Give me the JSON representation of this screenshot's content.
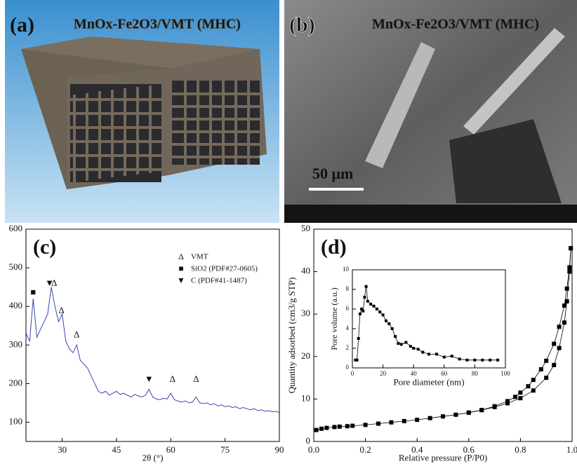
{
  "panels": [
    {
      "label": "(a)",
      "caption": "MnOx-Fe2O3/VMT (MHC)"
    },
    {
      "label": "(b)",
      "caption": "MnOx-Fe2O3/VMT (MHC)",
      "scale_bar": "50 μm"
    }
  ],
  "chart_data": [
    {
      "type": "line",
      "label": "(c)",
      "xlabel": "2θ (°)",
      "xlim": [
        20,
        90
      ],
      "xticks": [
        30,
        45,
        60,
        75,
        90
      ],
      "ylim": [
        50,
        600
      ],
      "yticks": [
        100,
        200,
        300,
        400,
        500,
        600
      ],
      "legend_corner": "upper right",
      "legend": [
        {
          "symbol": "Δ",
          "label": "VMT"
        },
        {
          "symbol": "■",
          "label": "SiO2 (PDF#27-0605)"
        },
        {
          "symbol": "▼",
          "label": "C (PDF#41-1487)"
        }
      ],
      "peak_markers": [
        {
          "symbol": "■",
          "x": 22,
          "y": 435
        },
        {
          "symbol": "▼",
          "x": 26.5,
          "y": 458
        },
        {
          "symbol": "Δ",
          "x": 27.8,
          "y": 458
        },
        {
          "symbol": "Δ",
          "x": 29.8,
          "y": 388
        },
        {
          "symbol": "Δ",
          "x": 34,
          "y": 325
        },
        {
          "symbol": "▼",
          "x": 54,
          "y": 210
        },
        {
          "symbol": "Δ",
          "x": 60.5,
          "y": 210
        },
        {
          "symbol": "Δ",
          "x": 67,
          "y": 210
        }
      ],
      "series": [
        {
          "color": "#3b46b0",
          "x": [
            20,
            21,
            22,
            23,
            24,
            25,
            26,
            27,
            28,
            29,
            30,
            31,
            32,
            33,
            34,
            35,
            36,
            37,
            38,
            39,
            40,
            41,
            42,
            43,
            44,
            45,
            46,
            47,
            48,
            49,
            50,
            51,
            52,
            53,
            54,
            55,
            56,
            57,
            58,
            59,
            60,
            61,
            62,
            63,
            64,
            65,
            66,
            67,
            68,
            69,
            70,
            71,
            72,
            73,
            74,
            75,
            76,
            77,
            78,
            79,
            80,
            81,
            82,
            83,
            84,
            85,
            86,
            87,
            88,
            89,
            90
          ],
          "values": [
            330,
            310,
            420,
            320,
            340,
            360,
            380,
            450,
            400,
            360,
            380,
            310,
            290,
            280,
            300,
            260,
            250,
            240,
            220,
            200,
            180,
            175,
            180,
            170,
            175,
            180,
            172,
            175,
            170,
            165,
            172,
            168,
            165,
            170,
            185,
            165,
            160,
            158,
            162,
            160,
            175,
            158,
            155,
            152,
            155,
            150,
            152,
            165,
            150,
            148,
            150,
            145,
            148,
            142,
            145,
            140,
            142,
            138,
            140,
            135,
            138,
            135,
            132,
            135,
            130,
            132,
            128,
            130,
            127,
            128,
            125
          ]
        }
      ]
    },
    {
      "type": "line",
      "label": "(d)",
      "xlabel": "Relative pressure (P/P0)",
      "ylabel": "Quantity adsorbed (cm3/g STP)",
      "markers": "square",
      "xlim": [
        0,
        1
      ],
      "xticks": [
        {
          "value": 0,
          "label": "0.0"
        },
        0.2,
        0.4,
        0.6,
        0.8,
        {
          "value": 1,
          "label": "1.0"
        }
      ],
      "ylim": [
        0,
        50
      ],
      "yticks": [
        0,
        10,
        20,
        30,
        40,
        50
      ],
      "series": [
        {
          "color": "#000000",
          "x": [
            0.01,
            0.03,
            0.05,
            0.08,
            0.1,
            0.13,
            0.15,
            0.2,
            0.25,
            0.3,
            0.35,
            0.4,
            0.45,
            0.5,
            0.55,
            0.6,
            0.65,
            0.7,
            0.75,
            0.8,
            0.85,
            0.9,
            0.93,
            0.95,
            0.97,
            0.98,
            0.99,
            0.995
          ],
          "values": [
            2.7,
            3.0,
            3.2,
            3.4,
            3.5,
            3.6,
            3.7,
            3.9,
            4.2,
            4.5,
            4.8,
            5.1,
            5.5,
            5.9,
            6.3,
            6.8,
            7.4,
            8.1,
            9.0,
            10.2,
            12,
            15,
            18,
            22,
            28,
            33,
            40,
            45.5
          ]
        },
        {
          "color": "#000000",
          "x": [
            0.995,
            0.99,
            0.98,
            0.97,
            0.95,
            0.93,
            0.9,
            0.88,
            0.85,
            0.83,
            0.8,
            0.78,
            0.75,
            0.7,
            0.65,
            0.6
          ],
          "values": [
            45.5,
            41,
            36,
            32,
            27,
            23,
            19,
            17,
            14.5,
            13,
            11.5,
            10.5,
            9.5,
            8.3,
            7.4,
            6.8
          ]
        }
      ]
    },
    {
      "type": "line",
      "xlabel": "Pore diameter (nm)",
      "ylabel": "Pore volume (a.u.)",
      "markers": "square",
      "xlim": [
        0,
        100
      ],
      "xticks": [
        0,
        20,
        40,
        60,
        80,
        100
      ],
      "ylim": [
        0,
        10
      ],
      "yticks": [
        0,
        2,
        4,
        6,
        8,
        10
      ],
      "series": [
        {
          "color": "#000000",
          "x": [
            2,
            3,
            4,
            5,
            6,
            7,
            8,
            9,
            10,
            12,
            14,
            16,
            18,
            20,
            22,
            24,
            26,
            28,
            30,
            32,
            35,
            38,
            40,
            43,
            46,
            50,
            55,
            60,
            65,
            70,
            75,
            80,
            85,
            90,
            95
          ],
          "values": [
            0.8,
            0.8,
            3,
            5.5,
            6,
            5.8,
            7.2,
            8.3,
            6.8,
            6.5,
            6.3,
            6,
            5.7,
            5.4,
            4.8,
            4.5,
            4.0,
            3.2,
            2.5,
            2.4,
            2.6,
            2.2,
            2.0,
            1.9,
            1.6,
            1.4,
            1.4,
            1.1,
            1.2,
            0.9,
            0.8,
            0.8,
            0.8,
            0.8,
            0.8
          ]
        }
      ]
    }
  ]
}
